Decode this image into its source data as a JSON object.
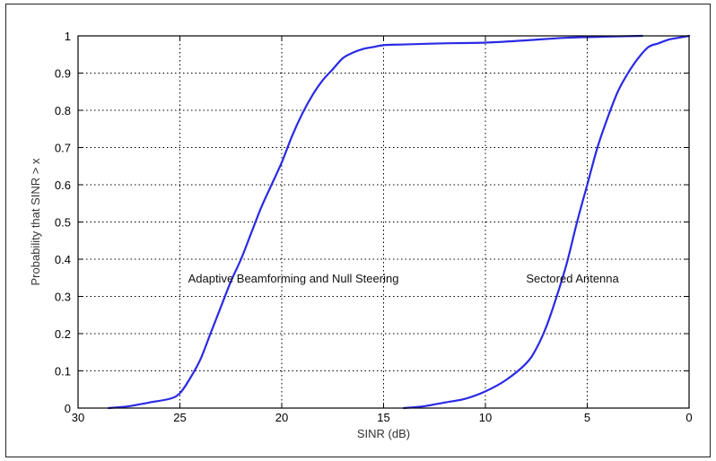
{
  "chart_data": {
    "type": "line",
    "title": "",
    "xlabel": "SINR (dB)",
    "ylabel": "Probability that SINR > x",
    "xlim": [
      30,
      0
    ],
    "ylim": [
      0,
      1
    ],
    "x_reversed": true,
    "grid": true,
    "x_ticks": [
      30,
      25,
      20,
      15,
      10,
      5,
      0
    ],
    "y_ticks": [
      0,
      0.1,
      0.2,
      0.3,
      0.4,
      0.5,
      0.6,
      0.7,
      0.8,
      0.9,
      1
    ],
    "line_color": "#2a2ae6",
    "series": [
      {
        "x": [
          28.5,
          27.5,
          26.5,
          25.5,
          25,
          24.5,
          24,
          23.5,
          23,
          22.5,
          22,
          21.5,
          21,
          20.5,
          20,
          19.5,
          19,
          18.5,
          18,
          17.5,
          17,
          16.5,
          16,
          15.5,
          15,
          14,
          12,
          10,
          8,
          6,
          4,
          2.3
        ],
        "y": [
          0,
          0.005,
          0.015,
          0.025,
          0.04,
          0.08,
          0.13,
          0.2,
          0.27,
          0.34,
          0.4,
          0.47,
          0.54,
          0.6,
          0.66,
          0.73,
          0.79,
          0.84,
          0.88,
          0.91,
          0.94,
          0.955,
          0.965,
          0.97,
          0.975,
          0.977,
          0.98,
          0.982,
          0.988,
          0.995,
          0.998,
          1.0
        ]
      },
      {
        "x": [
          14,
          13,
          12,
          11,
          10,
          9,
          8,
          7.5,
          7,
          6.5,
          6,
          5.5,
          5,
          4.5,
          4,
          3.5,
          3,
          2.5,
          2,
          1.5,
          1,
          0.5,
          0
        ],
        "y": [
          0,
          0.005,
          0.015,
          0.025,
          0.045,
          0.075,
          0.12,
          0.16,
          0.22,
          0.3,
          0.39,
          0.5,
          0.6,
          0.7,
          0.78,
          0.85,
          0.9,
          0.94,
          0.97,
          0.98,
          0.99,
          0.995,
          1.0
        ]
      }
    ],
    "annotations": [
      {
        "text": "Adaptive Beamforming and Null Steering",
        "x": 24.6,
        "y": 0.35
      },
      {
        "text": "Sectored Antenna",
        "x": 8.0,
        "y": 0.35
      }
    ]
  }
}
